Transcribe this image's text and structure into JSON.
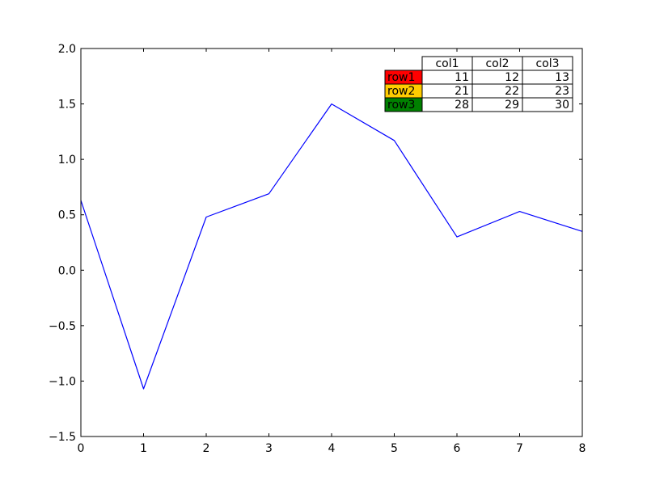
{
  "chart_data": {
    "type": "line",
    "title": "",
    "xlabel": "",
    "ylabel": "",
    "xlim": [
      0,
      8
    ],
    "ylim": [
      -1.5,
      2.0
    ],
    "xticks": [
      "0",
      "1",
      "2",
      "3",
      "4",
      "5",
      "6",
      "7",
      "8"
    ],
    "yticks": [
      "−1.5",
      "−1.0",
      "−0.5",
      "0.0",
      "0.5",
      "1.0",
      "1.5",
      "2.0"
    ],
    "grid": false,
    "series": [
      {
        "color": "#0000ff",
        "x": [
          0,
          1,
          2,
          3,
          4,
          5,
          6,
          7,
          8
        ],
        "y": [
          0.63,
          -1.07,
          0.48,
          0.69,
          1.5,
          1.17,
          0.3,
          0.53,
          0.35
        ]
      }
    ],
    "table": {
      "placement": "upper-right",
      "col_labels": [
        "col1",
        "col2",
        "col3"
      ],
      "rows": [
        {
          "label": "row1",
          "color": "#ff0000",
          "values": [
            "11",
            "12",
            "13"
          ]
        },
        {
          "label": "row2",
          "color": "#ffcc00",
          "values": [
            "21",
            "22",
            "23"
          ]
        },
        {
          "label": "row3",
          "color": "#008000",
          "values": [
            "28",
            "29",
            "30"
          ]
        }
      ]
    }
  }
}
